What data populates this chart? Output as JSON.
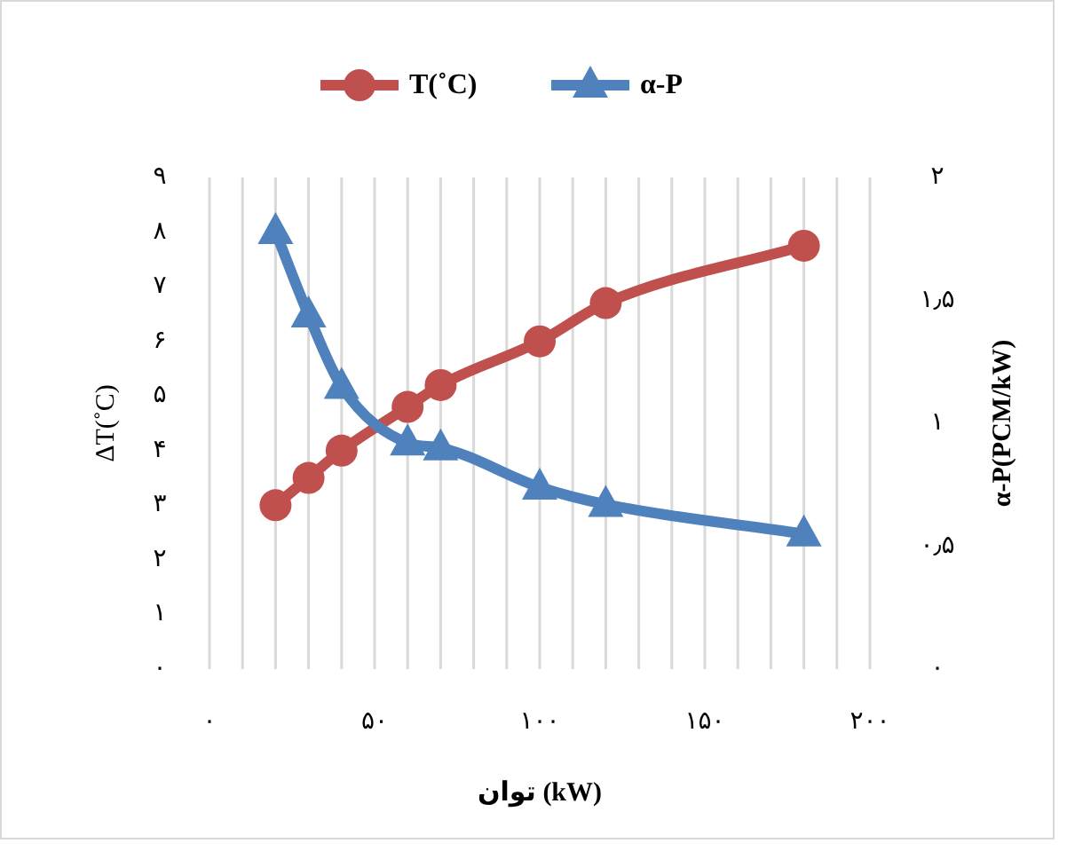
{
  "chart_data": {
    "type": "line",
    "xlabel": "توان (kW)",
    "ylabel": "ΔT(˚C)",
    "y2label": "α-P(PCM/kW)",
    "x": [
      20,
      30,
      40,
      60,
      70,
      100,
      120,
      180
    ],
    "series": [
      {
        "name": "T(˚C)",
        "color": "#c0504d",
        "marker": "circle",
        "values": [
          3.0,
          3.5,
          4.0,
          4.8,
          5.2,
          6.0,
          6.7,
          7.75
        ]
      },
      {
        "name": "α-P",
        "color": "#4f81bd",
        "marker": "triangle",
        "axis": "y2",
        "values": [
          1.78,
          1.44,
          1.15,
          0.92,
          0.9,
          0.74,
          0.67,
          0.55
        ]
      }
    ],
    "xlim": [
      0,
      200
    ],
    "xticks": [
      {
        "value": 0,
        "label": "۰"
      },
      {
        "value": 10,
        "label": null
      },
      {
        "value": 20,
        "label": null
      },
      {
        "value": 30,
        "label": null
      },
      {
        "value": 40,
        "label": null
      },
      {
        "value": 50,
        "label": "۵۰"
      },
      {
        "value": 60,
        "label": null
      },
      {
        "value": 70,
        "label": null
      },
      {
        "value": 80,
        "label": null
      },
      {
        "value": 90,
        "label": null
      },
      {
        "value": 100,
        "label": "۱۰۰"
      },
      {
        "value": 110,
        "label": null
      },
      {
        "value": 120,
        "label": null
      },
      {
        "value": 130,
        "label": null
      },
      {
        "value": 140,
        "label": null
      },
      {
        "value": 150,
        "label": "۱۵۰"
      },
      {
        "value": 160,
        "label": null
      },
      {
        "value": 170,
        "label": null
      },
      {
        "value": 180,
        "label": null
      },
      {
        "value": 190,
        "label": null
      },
      {
        "value": 200,
        "label": "۲۰۰"
      }
    ],
    "ylim": [
      0,
      9
    ],
    "yticks": [
      {
        "value": 0,
        "label": "۰"
      },
      {
        "value": 1,
        "label": "۱"
      },
      {
        "value": 2,
        "label": "۲"
      },
      {
        "value": 3,
        "label": "۳"
      },
      {
        "value": 4,
        "label": "۴"
      },
      {
        "value": 5,
        "label": "۵"
      },
      {
        "value": 6,
        "label": "۶"
      },
      {
        "value": 7,
        "label": "۷"
      },
      {
        "value": 8,
        "label": "۸"
      },
      {
        "value": 9,
        "label": "۹"
      }
    ],
    "y2lim": [
      0,
      2
    ],
    "y2ticks": [
      {
        "value": 0,
        "label": "۰"
      },
      {
        "value": 0.5,
        "label": "۰٫۵"
      },
      {
        "value": 1,
        "label": "۱"
      },
      {
        "value": 1.5,
        "label": "۱٫۵"
      },
      {
        "value": 2,
        "label": "۲"
      }
    ],
    "grid": "x",
    "legend": "top",
    "line_style": "solid"
  }
}
